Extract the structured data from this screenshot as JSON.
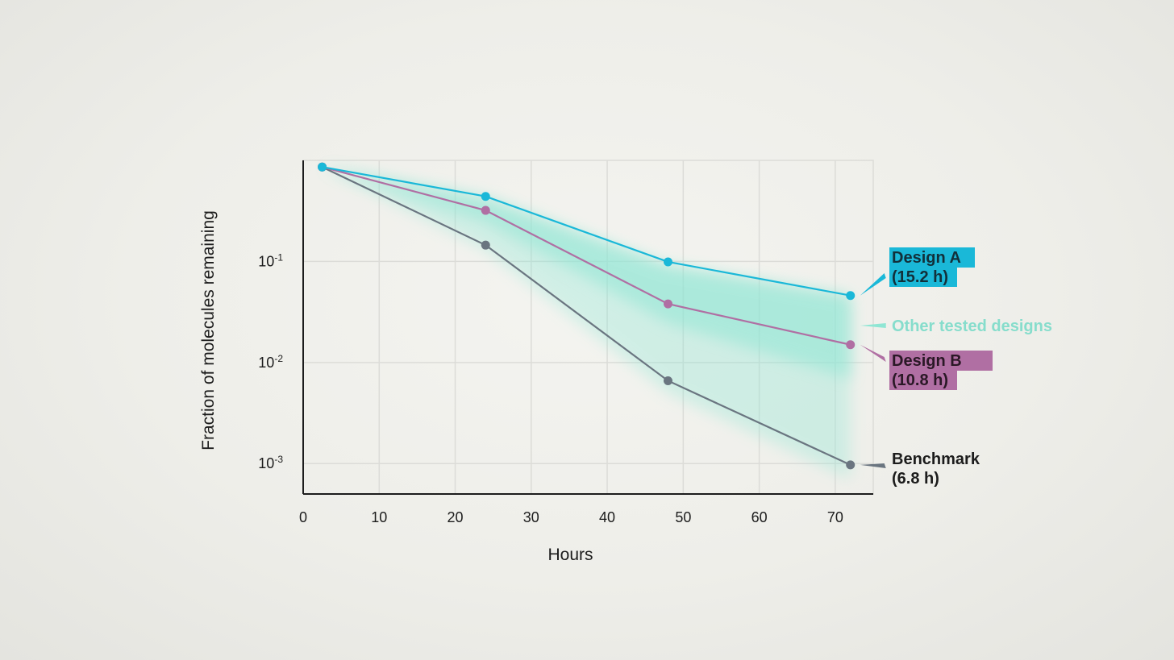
{
  "chart_data": {
    "type": "line",
    "xlabel": "Hours",
    "ylabel": "Fraction of molecules remaining",
    "xlim": [
      0,
      75
    ],
    "ylim": [
      0.0005,
      1.0
    ],
    "y_scale": "log",
    "grid": true,
    "x_ticks": [
      "0",
      "10",
      "20",
      "30",
      "40",
      "50",
      "60",
      "70"
    ],
    "y_ticks": [
      {
        "base": "10",
        "exp": "-1",
        "value": 0.1
      },
      {
        "base": "10",
        "exp": "-2",
        "value": 0.01
      },
      {
        "base": "10",
        "exp": "-3",
        "value": 0.001
      }
    ],
    "series": [
      {
        "name": "Design A",
        "half_life": "(15.2 h)",
        "color": "#1ab8d8",
        "x": [
          2.5,
          24,
          48,
          72
        ],
        "y": [
          0.86,
          0.44,
          0.099,
          0.046
        ]
      },
      {
        "name": "Design B",
        "half_life": "(10.8 h)",
        "color": "#b06fa3",
        "x": [
          2.5,
          24,
          48,
          72
        ],
        "y": [
          0.86,
          0.32,
          0.038,
          0.015
        ]
      },
      {
        "name": "Benchmark",
        "half_life": "(6.8 h)",
        "color": "#6a7580",
        "x": [
          2.5,
          24,
          48,
          72
        ],
        "y": [
          0.86,
          0.145,
          0.0066,
          0.00097
        ]
      }
    ],
    "band": {
      "name": "Other tested designs",
      "color": "#8fe6d4",
      "x": [
        2.5,
        24,
        48,
        72
      ],
      "upper": [
        0.86,
        0.42,
        0.09,
        0.045
      ],
      "lower": [
        0.86,
        0.13,
        0.005,
        0.0007
      ]
    }
  }
}
